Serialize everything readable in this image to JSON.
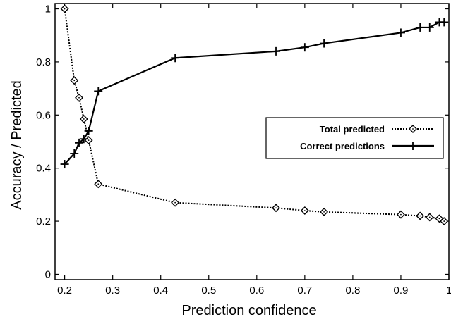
{
  "chart_data": {
    "type": "line",
    "title": "",
    "xlabel": "Prediction confidence",
    "ylabel": "Accuracy / Predicted",
    "xlim": [
      0.18,
      1.0
    ],
    "ylim": [
      -0.02,
      1.02
    ],
    "xticks": [
      0.2,
      0.3,
      0.4,
      0.5,
      0.6,
      0.7,
      0.8,
      0.9,
      1
    ],
    "xtick_labels": [
      "0.2",
      "0.3",
      "0.4",
      "0.5",
      "0.6",
      "0.7",
      "0.8",
      "0.9",
      "1"
    ],
    "yticks": [
      0,
      0.2,
      0.4,
      0.6,
      0.8,
      1
    ],
    "ytick_labels": [
      "0",
      "0.2",
      "0.4",
      "0.6",
      "0.8",
      "1"
    ],
    "grid": false,
    "legend_position": "right",
    "series": [
      {
        "name": "Total predicted",
        "style": "dotted",
        "marker": "diamond",
        "color": "#000000",
        "x": [
          0.2,
          0.22,
          0.23,
          0.24,
          0.25,
          0.27,
          0.43,
          0.64,
          0.7,
          0.74,
          0.9,
          0.94,
          0.96,
          0.98,
          0.99
        ],
        "y": [
          1.0,
          0.73,
          0.665,
          0.585,
          0.505,
          0.34,
          0.27,
          0.25,
          0.24,
          0.235,
          0.225,
          0.22,
          0.215,
          0.21,
          0.2
        ]
      },
      {
        "name": "Correct predictions",
        "style": "solid",
        "marker": "plus",
        "color": "#000000",
        "x": [
          0.2,
          0.22,
          0.23,
          0.24,
          0.25,
          0.27,
          0.43,
          0.64,
          0.7,
          0.74,
          0.9,
          0.94,
          0.96,
          0.98,
          0.99
        ],
        "y": [
          0.415,
          0.455,
          0.495,
          0.51,
          0.54,
          0.69,
          0.815,
          0.84,
          0.855,
          0.87,
          0.91,
          0.93,
          0.93,
          0.95,
          0.95
        ]
      }
    ]
  }
}
